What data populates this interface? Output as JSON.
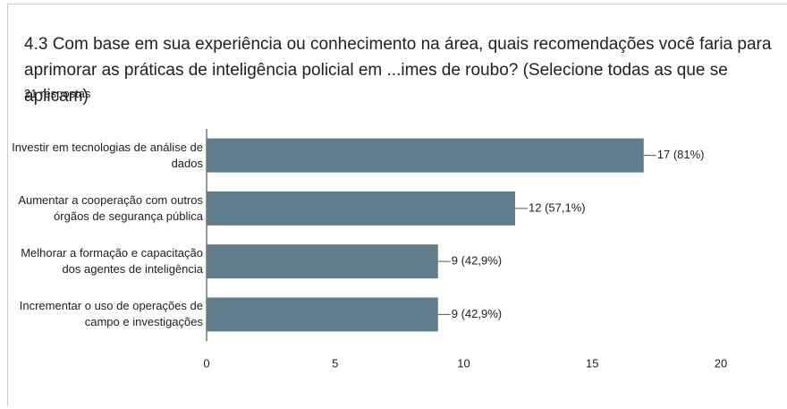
{
  "chart_data": {
    "type": "bar",
    "orientation": "horizontal",
    "title": "4.3 Com base em sua experiência ou conhecimento na área, quais recomendações você faria para aprimorar as práticas de inteligência policial em ...imes de roubo? (Selecione todas as que se aplicam)",
    "subtitle": "21 respostas",
    "categories": [
      "Investir em tecnologias de análise de dados",
      "Aumentar a cooperação com outros órgãos de segurança pública",
      "Melhorar a formação e capacitação dos agentes de inteligência",
      "Incrementar o uso de operações de campo e investigações"
    ],
    "values": [
      17,
      12,
      9,
      9
    ],
    "value_labels": [
      "17 (81%)",
      "12 (57,1%)",
      "9 (42,9%)",
      "9 (42,9%)"
    ],
    "color": "#607d8b",
    "xlim": [
      0,
      20
    ],
    "xticks": [
      0,
      5,
      10,
      15,
      20
    ]
  }
}
